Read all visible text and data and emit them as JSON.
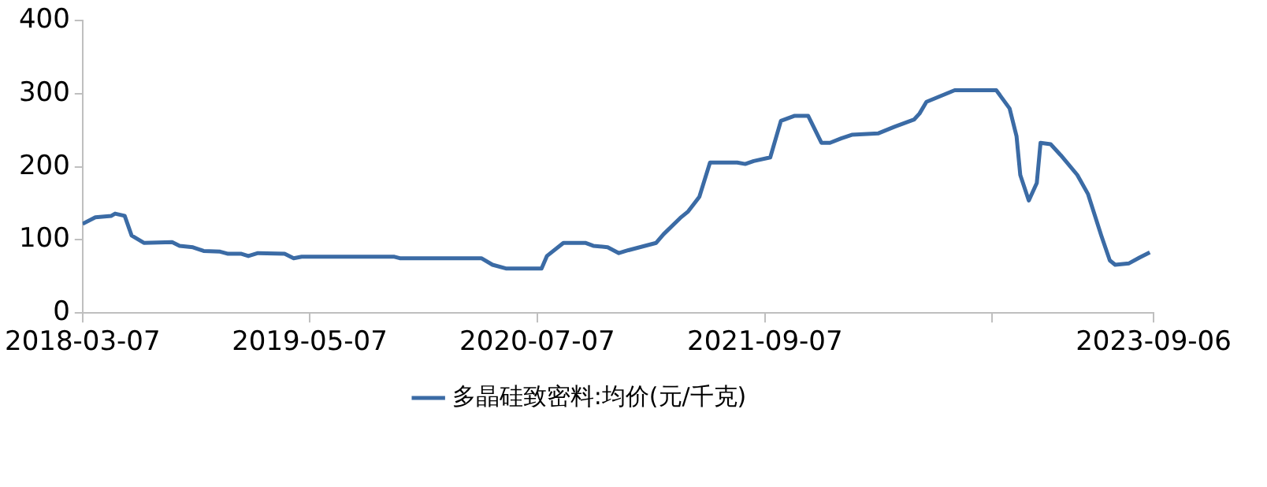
{
  "chart_data": {
    "type": "line",
    "x": [
      "2018-03-07",
      "2018-03-31",
      "2018-04-30",
      "2018-05-07",
      "2018-05-25",
      "2018-06-07",
      "2018-06-30",
      "2018-08-22",
      "2018-09-05",
      "2018-09-30",
      "2018-10-20",
      "2018-11-20",
      "2018-12-05",
      "2018-12-30",
      "2019-01-12",
      "2019-01-30",
      "2019-03-21",
      "2019-04-07",
      "2019-04-22",
      "2019-10-13",
      "2019-10-23",
      "2020-03-24",
      "2020-04-14",
      "2020-05-09",
      "2020-07-15",
      "2020-07-25",
      "2020-08-25",
      "2020-10-05",
      "2020-10-20",
      "2020-11-16",
      "2020-12-07",
      "2020-12-25",
      "2021-02-15",
      "2021-03-01",
      "2021-04-01",
      "2021-04-16",
      "2021-05-07",
      "2021-05-27",
      "2021-07-17",
      "2021-08-01",
      "2021-08-17",
      "2021-09-17",
      "2021-10-07",
      "2021-11-02",
      "2021-11-27",
      "2021-12-22",
      "2022-01-07",
      "2022-01-28",
      "2022-02-17",
      "2022-04-08",
      "2022-05-08",
      "2022-06-14",
      "2022-06-24",
      "2022-07-07",
      "2022-08-29",
      "2022-11-15",
      "2022-12-10",
      "2022-12-23",
      "2022-12-30",
      "2023-01-15",
      "2023-01-30",
      "2023-02-06",
      "2023-02-25",
      "2023-03-16",
      "2023-04-16",
      "2023-05-06",
      "2023-05-31",
      "2023-06-16",
      "2023-06-26",
      "2023-07-22",
      "2023-08-11",
      "2023-08-30"
    ],
    "series": [
      {
        "name": "多晶硅致密料:均价(元/千克)",
        "color": "#3b6ba5",
        "values": [
          122,
          131,
          133,
          136,
          133,
          106,
          96,
          97,
          92,
          90,
          85,
          84,
          81,
          81,
          78,
          82,
          81,
          75,
          77,
          77,
          75,
          75,
          66,
          61,
          61,
          78,
          96,
          96,
          92,
          90,
          82,
          86,
          96,
          108,
          130,
          139,
          159,
          206,
          206,
          204,
          208,
          213,
          263,
          270,
          270,
          233,
          233,
          239,
          244,
          246,
          255,
          265,
          273,
          289,
          305,
          305,
          280,
          242,
          189,
          154,
          178,
          233,
          231,
          216,
          189,
          163,
          106,
          72,
          66,
          68,
          76,
          83
        ]
      }
    ],
    "xlim": [
      "2018-03-07",
      "2023-09-06"
    ],
    "xticks": [
      "2018-03-07",
      "2019-05-07",
      "2020-07-07",
      "2021-09-07",
      {
        "value": "2022-11-07",
        "label": null
      },
      "2023-09-06"
    ],
    "ylim": [
      0,
      400
    ],
    "yticks": [
      0,
      100,
      200,
      300,
      400
    ],
    "grid": false,
    "legend": "bottom",
    "marker": "none",
    "line_style": "solid"
  }
}
